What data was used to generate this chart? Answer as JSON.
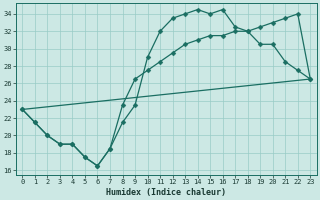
{
  "xlabel": "Humidex (Indice chaleur)",
  "background_color": "#cce8e4",
  "grid_color": "#99ccc6",
  "line_color": "#1a6e62",
  "xlim": [
    -0.5,
    23.5
  ],
  "ylim": [
    15.5,
    35.2
  ],
  "yticks": [
    16,
    18,
    20,
    22,
    24,
    26,
    28,
    30,
    32,
    34
  ],
  "xticks": [
    0,
    1,
    2,
    3,
    4,
    5,
    6,
    7,
    8,
    9,
    10,
    11,
    12,
    13,
    14,
    15,
    16,
    17,
    18,
    19,
    20,
    21,
    22,
    23
  ],
  "line1_x": [
    0,
    1,
    2,
    3,
    4,
    5,
    6,
    7,
    8,
    9,
    10,
    11,
    12,
    13,
    14,
    15,
    16,
    17,
    18,
    19,
    20,
    21,
    22,
    23
  ],
  "line1_y": [
    23.0,
    21.5,
    20.0,
    19.0,
    19.0,
    17.5,
    16.5,
    18.5,
    21.5,
    23.5,
    29.0,
    32.0,
    33.5,
    34.0,
    34.5,
    34.0,
    34.5,
    32.5,
    32.0,
    30.5,
    30.5,
    28.5,
    27.5,
    26.5
  ],
  "line2_x": [
    0,
    1,
    2,
    3,
    4,
    5,
    6,
    7,
    8,
    9,
    10,
    11,
    12,
    13,
    14,
    15,
    16,
    17,
    18,
    19,
    20,
    21,
    22,
    23
  ],
  "line2_y": [
    23.0,
    21.5,
    20.0,
    19.0,
    19.0,
    17.5,
    16.5,
    18.5,
    23.5,
    26.5,
    27.5,
    28.5,
    29.5,
    30.5,
    31.0,
    31.5,
    31.5,
    32.0,
    32.0,
    32.5,
    33.0,
    33.5,
    34.0,
    26.5
  ],
  "line3_x": [
    0,
    23
  ],
  "line3_y": [
    23.0,
    26.5
  ],
  "marker_x1": [
    0,
    1,
    2,
    3,
    4,
    5,
    6,
    7,
    8,
    9,
    10,
    11,
    12,
    13,
    14,
    15,
    16,
    17,
    18,
    19,
    20,
    21,
    22,
    23
  ],
  "marker_y1": [
    23.0,
    21.5,
    20.0,
    19.0,
    19.0,
    17.5,
    16.5,
    18.5,
    21.5,
    23.5,
    29.0,
    32.0,
    33.5,
    34.0,
    34.5,
    34.0,
    34.5,
    32.5,
    32.0,
    30.5,
    30.5,
    28.5,
    27.5,
    26.5
  ],
  "marker_x2": [
    0,
    1,
    2,
    3,
    4,
    5,
    6,
    7,
    8,
    9,
    10,
    11,
    12,
    13,
    14,
    15,
    16,
    17,
    18,
    19,
    20,
    21,
    22,
    23
  ],
  "marker_y2": [
    23.0,
    21.5,
    20.0,
    19.0,
    19.0,
    17.5,
    16.5,
    18.5,
    23.5,
    26.5,
    27.5,
    28.5,
    29.5,
    30.5,
    31.0,
    31.5,
    31.5,
    32.0,
    32.0,
    32.5,
    33.0,
    33.5,
    34.0,
    26.5
  ]
}
